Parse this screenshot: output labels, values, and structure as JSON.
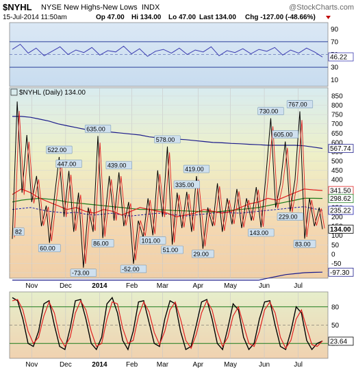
{
  "header": {
    "symbol": "$NYHL",
    "name": "NYSE New Highs-New Lows",
    "exchange": "INDX",
    "watermark": "@StockCharts.com",
    "timestamp": "15-Jul-2014 11:50am",
    "quote_open": "Op 47.00",
    "quote_high": "Hi 134.00",
    "quote_low": "Lo 47.00",
    "quote_last": "Last 134.00",
    "quote_change": "Chg -127.00 (-48.66%)",
    "change_arrow": "down-triangle-icon"
  },
  "colors": {
    "price_line": "#000000",
    "ma_fast": "#e02020",
    "ma_slow": "#1a7a1a",
    "ma_mid": "#1a1aa8",
    "ma_long": "#1a1a8a",
    "rsi_line": "#3a3ab0",
    "stoch_k": "#000000",
    "stoch_d": "#e02020",
    "down": "#c00000"
  },
  "chart_data": [
    {
      "type": "line",
      "panel": "top-indicator",
      "ylim": [
        0,
        100
      ],
      "y_ticks": [
        "90",
        "70",
        "50",
        "30",
        "10"
      ],
      "reference_lines": [
        70,
        30
      ],
      "last_value_label": "46.22",
      "series": [
        {
          "values": [
            58,
            66,
            52,
            60,
            48,
            55,
            62,
            50,
            57,
            53,
            61,
            49,
            56,
            54,
            63,
            51,
            59,
            47,
            55,
            58,
            52,
            60,
            50,
            57,
            54,
            62,
            48,
            56,
            53,
            59,
            51,
            58,
            55,
            61,
            49,
            57,
            52,
            60,
            54,
            46
          ]
        }
      ]
    },
    {
      "type": "line",
      "panel": "price",
      "legend": "$NYHL (Daily) 134.00",
      "ylim": [
        -100,
        850
      ],
      "y_ticks": [
        "850",
        "800",
        "750",
        "700",
        "650",
        "600",
        "550",
        "500",
        "450",
        "400",
        "350",
        "300",
        "250",
        "200",
        "150",
        "100",
        "50",
        "0",
        "-50",
        "-100"
      ],
      "x_ticks": [
        "Nov",
        "Dec",
        "2014",
        "Feb",
        "Mar",
        "Apr",
        "May",
        "Jun",
        "Jul"
      ],
      "x_range": [
        0,
        192
      ],
      "month_starts": [
        12,
        33,
        54,
        74,
        93,
        115,
        135,
        156,
        177
      ],
      "points": [
        {
          "x": 0,
          "y": 82
        },
        {
          "x": 3,
          "y": 820
        },
        {
          "x": 6,
          "y": 330
        },
        {
          "x": 9,
          "y": 640
        },
        {
          "x": 12,
          "y": 280
        },
        {
          "x": 15,
          "y": 420
        },
        {
          "x": 18,
          "y": 150
        },
        {
          "x": 21,
          "y": 260
        },
        {
          "x": 23,
          "y": 60
        },
        {
          "x": 26,
          "y": 300
        },
        {
          "x": 29,
          "y": 522
        },
        {
          "x": 32,
          "y": 200
        },
        {
          "x": 35,
          "y": 447
        },
        {
          "x": 38,
          "y": 120
        },
        {
          "x": 41,
          "y": 330
        },
        {
          "x": 44,
          "y": -73
        },
        {
          "x": 47,
          "y": 250
        },
        {
          "x": 50,
          "y": 120
        },
        {
          "x": 53,
          "y": 635
        },
        {
          "x": 56,
          "y": 86
        },
        {
          "x": 60,
          "y": 420
        },
        {
          "x": 63,
          "y": 180
        },
        {
          "x": 66,
          "y": 439
        },
        {
          "x": 69,
          "y": 150
        },
        {
          "x": 72,
          "y": 280
        },
        {
          "x": 75,
          "y": -52
        },
        {
          "x": 78,
          "y": 180
        },
        {
          "x": 81,
          "y": 90
        },
        {
          "x": 84,
          "y": 300
        },
        {
          "x": 87,
          "y": 101
        },
        {
          "x": 90,
          "y": 450
        },
        {
          "x": 93,
          "y": 200
        },
        {
          "x": 96,
          "y": 578
        },
        {
          "x": 99,
          "y": 51
        },
        {
          "x": 102,
          "y": 330
        },
        {
          "x": 105,
          "y": 140
        },
        {
          "x": 108,
          "y": 335
        },
        {
          "x": 111,
          "y": 120
        },
        {
          "x": 114,
          "y": 419
        },
        {
          "x": 118,
          "y": 29
        },
        {
          "x": 121,
          "y": 250
        },
        {
          "x": 124,
          "y": 150
        },
        {
          "x": 127,
          "y": 380
        },
        {
          "x": 130,
          "y": 120
        },
        {
          "x": 133,
          "y": 300
        },
        {
          "x": 136,
          "y": 160
        },
        {
          "x": 139,
          "y": 350
        },
        {
          "x": 142,
          "y": 140
        },
        {
          "x": 145,
          "y": 300
        },
        {
          "x": 148,
          "y": 180
        },
        {
          "x": 151,
          "y": 360
        },
        {
          "x": 154,
          "y": 143
        },
        {
          "x": 157,
          "y": 420
        },
        {
          "x": 160,
          "y": 730
        },
        {
          "x": 163,
          "y": 250
        },
        {
          "x": 166,
          "y": 380
        },
        {
          "x": 169,
          "y": 605
        },
        {
          "x": 172,
          "y": 229
        },
        {
          "x": 175,
          "y": 400
        },
        {
          "x": 178,
          "y": 767
        },
        {
          "x": 181,
          "y": 83
        },
        {
          "x": 184,
          "y": 300
        },
        {
          "x": 187,
          "y": 150
        },
        {
          "x": 190,
          "y": 250
        },
        {
          "x": 192,
          "y": 134
        }
      ],
      "ma_fast": [
        320,
        350,
        330,
        300,
        280,
        260,
        240,
        250,
        230,
        220,
        240,
        230,
        210,
        230,
        250,
        240,
        230,
        220,
        200,
        210,
        220,
        240,
        230,
        220,
        230,
        250,
        270,
        280,
        300,
        290,
        310,
        330,
        350,
        345,
        342
      ],
      "ma_mid": [
        240,
        245,
        250,
        240,
        230,
        225,
        220,
        225,
        215,
        210,
        215,
        220,
        210,
        205,
        210,
        215,
        220,
        215,
        210,
        205,
        210,
        215,
        220,
        225,
        222,
        220,
        225,
        230,
        235,
        240,
        245,
        250,
        255,
        245,
        235
      ],
      "ma_slow": [
        280,
        290,
        295,
        300,
        295,
        290,
        280,
        275,
        270,
        265,
        260,
        255,
        250,
        245,
        240,
        240,
        238,
        236,
        234,
        232,
        230,
        228,
        226,
        230,
        235,
        240,
        245,
        250,
        260,
        270,
        280,
        290,
        300,
        300,
        299
      ],
      "ma_long": [
        740,
        740,
        735,
        725,
        715,
        700,
        690,
        680,
        670,
        665,
        660,
        655,
        650,
        645,
        640,
        630,
        625,
        620,
        618,
        615,
        610,
        605,
        600,
        598,
        595,
        593,
        590,
        588,
        585,
        585,
        585,
        585,
        582,
        575,
        568
      ],
      "lower_band": [
        -140,
        -140,
        -140,
        -140,
        -140,
        -140,
        -140,
        -140,
        -140,
        -140,
        -140,
        -140,
        -140,
        -140,
        -140,
        -140,
        -140,
        -140,
        -140,
        -140,
        -140,
        -140,
        -140,
        -140,
        -140,
        -140,
        -140,
        -140,
        -130,
        -120,
        -110,
        -105,
        -100,
        -98,
        -97
      ],
      "point_labels": [
        {
          "x": 0,
          "y": 82,
          "text": "82"
        },
        {
          "x": 29,
          "y": 522,
          "text": "522.00"
        },
        {
          "x": 35,
          "y": 447,
          "text": "447.00"
        },
        {
          "x": 53,
          "y": 635,
          "text": "635.00"
        },
        {
          "x": 66,
          "y": 439,
          "text": "439.00"
        },
        {
          "x": 96,
          "y": 578,
          "text": "578.00"
        },
        {
          "x": 108,
          "y": 335,
          "text": "335.00"
        },
        {
          "x": 114,
          "y": 419,
          "text": "419.00"
        },
        {
          "x": 160,
          "y": 730,
          "text": "730.00"
        },
        {
          "x": 169,
          "y": 605,
          "text": "605.00"
        },
        {
          "x": 178,
          "y": 767,
          "text": "767.00"
        },
        {
          "x": 23,
          "y": 60,
          "text": "60.00"
        },
        {
          "x": 56,
          "y": 86,
          "text": "86.00"
        },
        {
          "x": 87,
          "y": 101,
          "text": "101.00"
        },
        {
          "x": 99,
          "y": 51,
          "text": "51.00"
        },
        {
          "x": 118,
          "y": 29,
          "text": "29.00"
        },
        {
          "x": 154,
          "y": 143,
          "text": "143.00"
        },
        {
          "x": 172,
          "y": 229,
          "text": "229.00"
        },
        {
          "x": 181,
          "y": 83,
          "text": "83.00"
        },
        {
          "x": 44,
          "y": -73,
          "text": "-73.00"
        },
        {
          "x": 75,
          "y": -52,
          "text": "-52.00"
        }
      ],
      "right_labels": [
        {
          "y": 567.74,
          "text": "567.74"
        },
        {
          "y": 341.5,
          "text": "341.50"
        },
        {
          "y": 298.62,
          "text": "298.62"
        },
        {
          "y": 235.22,
          "text": "235.22"
        },
        {
          "y": 134,
          "text": "134.00"
        },
        {
          "y": -97.3,
          "text": "-97.30"
        }
      ]
    },
    {
      "type": "line",
      "panel": "bottom-oscillator",
      "ylim": [
        0,
        100
      ],
      "y_ticks": [
        "80",
        "50",
        "20"
      ],
      "reference_lines": [
        80,
        20
      ],
      "x_ticks": [
        "Nov",
        "Dec",
        "2014",
        "Feb",
        "Mar",
        "Apr",
        "May",
        "Jun",
        "Jul"
      ],
      "last_value_label": "23.64",
      "series": [
        {
          "values": [
            95,
            90,
            60,
            20,
            15,
            40,
            85,
            90,
            50,
            15,
            10,
            45,
            90,
            92,
            60,
            20,
            10,
            30,
            85,
            95,
            70,
            25,
            10,
            40,
            88,
            90,
            55,
            20,
            15,
            60,
            90,
            85,
            40,
            10,
            15,
            50,
            88,
            92,
            60,
            20,
            10,
            45,
            85,
            75,
            30,
            10,
            20,
            60,
            88,
            90,
            50,
            15,
            10,
            40,
            80,
            70,
            25,
            10,
            20,
            24
          ]
        },
        {
          "values": [
            90,
            92,
            75,
            40,
            20,
            30,
            65,
            88,
            70,
            30,
            15,
            30,
            70,
            90,
            75,
            40,
            15,
            20,
            60,
            88,
            85,
            45,
            20,
            25,
            65,
            88,
            72,
            38,
            18,
            40,
            75,
            88,
            60,
            25,
            12,
            35,
            70,
            90,
            75,
            40,
            15,
            30,
            65,
            80,
            50,
            20,
            15,
            40,
            75,
            88,
            70,
            30,
            12,
            25,
            60,
            75,
            45,
            18,
            15,
            24
          ]
        }
      ]
    }
  ]
}
